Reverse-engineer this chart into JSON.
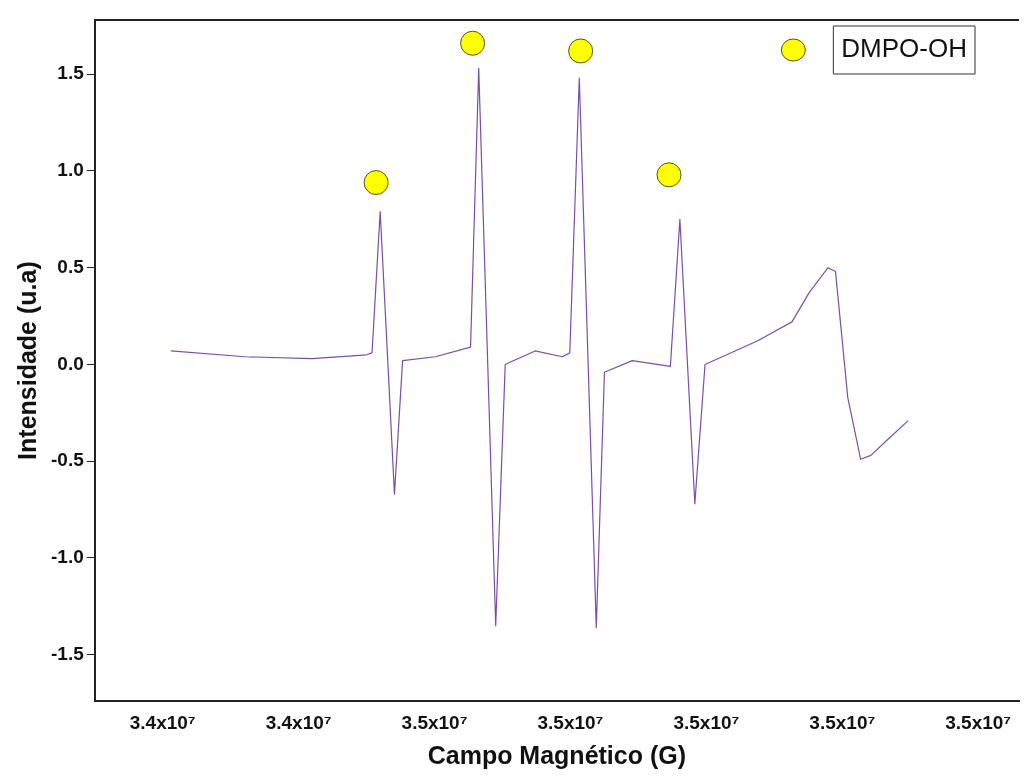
{
  "chart_data": {
    "type": "line",
    "xlabel": "Campo Magnético (G)",
    "ylabel": "Intensidade (u.a)",
    "xlim": [
      34100000,
      35460000
    ],
    "ylim": [
      -1.74,
      1.78
    ],
    "xticks": [
      {
        "value": 34200000,
        "label": "3.4x10⁷"
      },
      {
        "value": 34400000,
        "label": "3.4x10⁷"
      },
      {
        "value": 34600000,
        "label": "3.5x10⁷"
      },
      {
        "value": 34800000,
        "label": "3.5x10⁷"
      },
      {
        "value": 35000000,
        "label": "3.5x10⁷"
      },
      {
        "value": 35200000,
        "label": "3.5x10⁷"
      },
      {
        "value": 35400000,
        "label": "3.5x10⁷"
      }
    ],
    "yticks": [
      {
        "value": -1.5,
        "label": "-1.5"
      },
      {
        "value": -1,
        "label": "-1.0"
      },
      {
        "value": -0.5,
        "label": "-0.5"
      },
      {
        "value": 0,
        "label": "0.0"
      },
      {
        "value": 0.5,
        "label": "0.5"
      },
      {
        "value": 1,
        "label": "1.0"
      },
      {
        "value": 1.5,
        "label": "1.5"
      }
    ],
    "grid": false,
    "legend": "top right",
    "line_style": "solid",
    "series": [
      {
        "color": "#7b4fa8",
        "marker": "none",
        "x": [
          34212000,
          34321000,
          34420000,
          34500000,
          34508000,
          34520000,
          34530000,
          34541000,
          34553000,
          34601000,
          34653000,
          34665000,
          34690000,
          34704000,
          34748000,
          34788000,
          34799000,
          34813000,
          34838000,
          34850000,
          34891000,
          34947000,
          34961000,
          34983000,
          34998000,
          35074000,
          35126000,
          35151000,
          35179000,
          35190000,
          35208000,
          35227000,
          35242000,
          35266000,
          35297000
        ],
        "values": [
          0.07,
          0.04,
          0.03,
          0.05,
          0.06,
          0.79,
          0.1,
          -0.67,
          0.02,
          0.04,
          0.09,
          1.53,
          -1.35,
          0.0,
          0.07,
          0.04,
          0.06,
          1.48,
          -1.36,
          -0.04,
          0.02,
          -0.01,
          0.75,
          -0.72,
          0.0,
          0.12,
          0.22,
          0.37,
          0.5,
          0.48,
          -0.17,
          -0.49,
          -0.47,
          -0.39,
          -0.29
        ]
      },
      {
        "type": "scatter",
        "name": "DMPO-OH",
        "color": "#ffff00",
        "marker": "circle",
        "x": [
          34514000,
          34656000,
          34815000,
          34945000
        ],
        "values": [
          0.94,
          1.66,
          1.62,
          0.98
        ]
      }
    ]
  }
}
